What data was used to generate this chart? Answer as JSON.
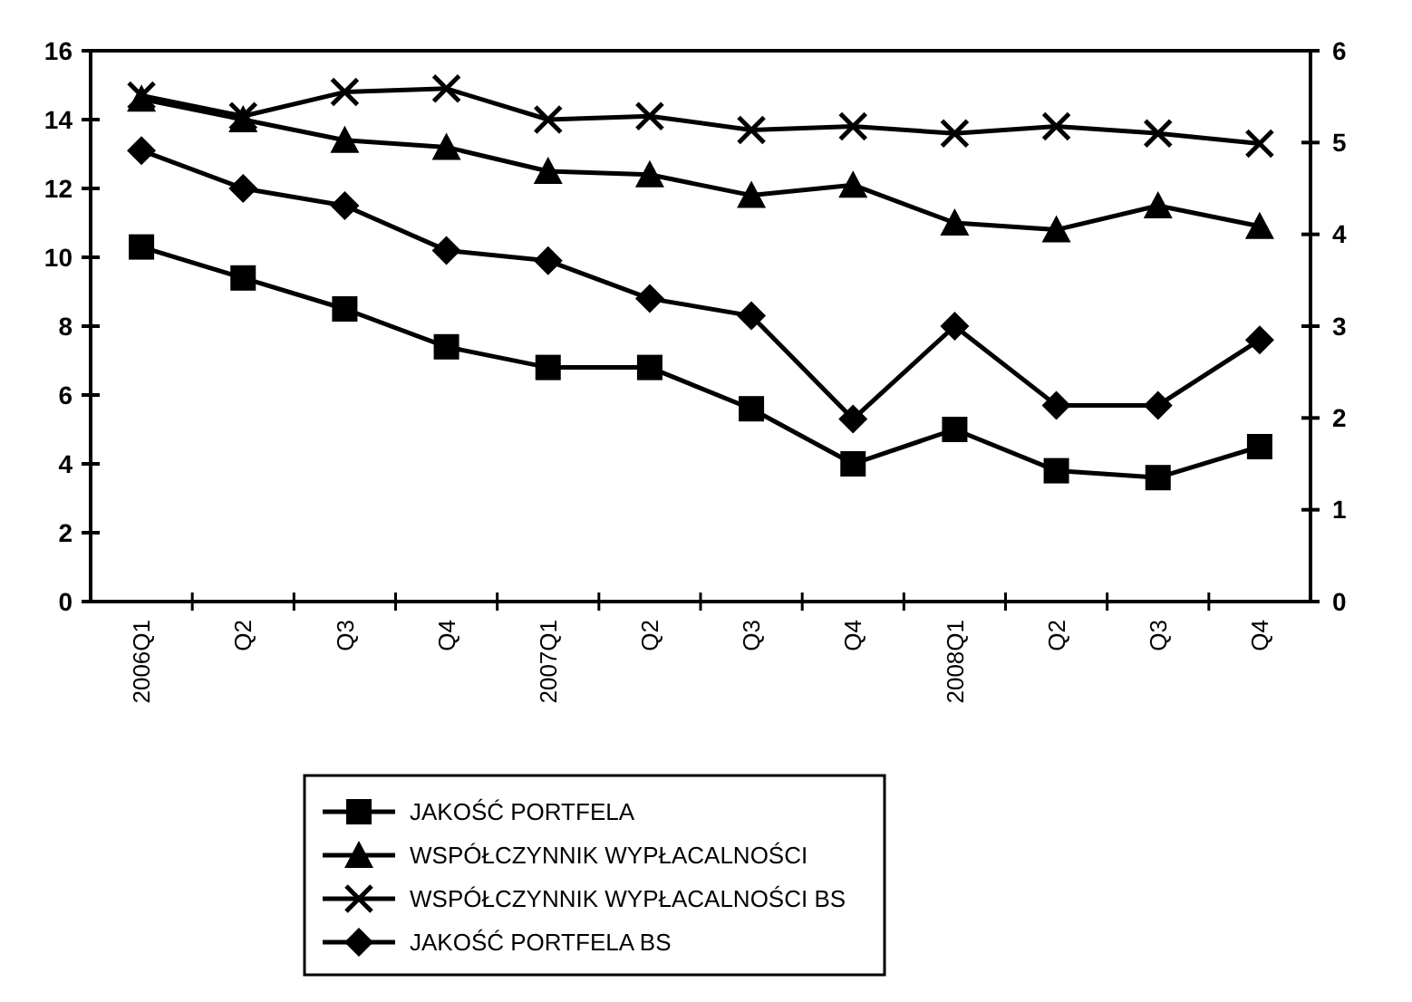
{
  "chart_data": {
    "type": "line",
    "categories": [
      "2006Q1",
      "Q2",
      "Q3",
      "Q4",
      "2007Q1",
      "Q2",
      "Q3",
      "Q4",
      "2008Q1",
      "Q2",
      "Q3",
      "Q4"
    ],
    "series": [
      {
        "name": "JAKOŚĆ PORTFELA",
        "color": "#000000",
        "marker": "square",
        "values": [
          10.3,
          9.4,
          8.5,
          7.4,
          6.8,
          6.8,
          5.6,
          4.0,
          5.0,
          3.8,
          3.6,
          4.5
        ]
      },
      {
        "name": "WSPÓŁCZYNNIK WYPŁACALNOŚCI",
        "color": "#000000",
        "marker": "triangle",
        "values": [
          14.6,
          14.0,
          13.4,
          13.2,
          12.5,
          12.4,
          11.8,
          12.1,
          11.0,
          10.8,
          11.5,
          10.9
        ]
      },
      {
        "name": "WSPÓŁCZYNNIK WYPŁACALNOŚCI BS",
        "color": "#000000",
        "marker": "cross",
        "values": [
          14.7,
          14.1,
          14.8,
          14.9,
          14.0,
          14.1,
          13.7,
          13.8,
          13.6,
          13.8,
          13.6,
          13.3
        ]
      },
      {
        "name": "JAKOŚĆ PORTFELA BS",
        "color": "#000000",
        "marker": "diamond",
        "values": [
          13.1,
          12.0,
          11.5,
          10.2,
          9.9,
          8.8,
          8.3,
          5.3,
          8.0,
          5.7,
          5.7,
          7.6
        ]
      }
    ],
    "ylim": [
      0,
      16
    ],
    "yticks": [
      0,
      2,
      4,
      6,
      8,
      10,
      12,
      14,
      16
    ],
    "y2lim": [
      0,
      6
    ],
    "y2ticks": [
      0,
      1,
      2,
      3,
      4,
      5,
      6
    ],
    "grid": false,
    "legend": "bottom",
    "line_style": "solid"
  }
}
